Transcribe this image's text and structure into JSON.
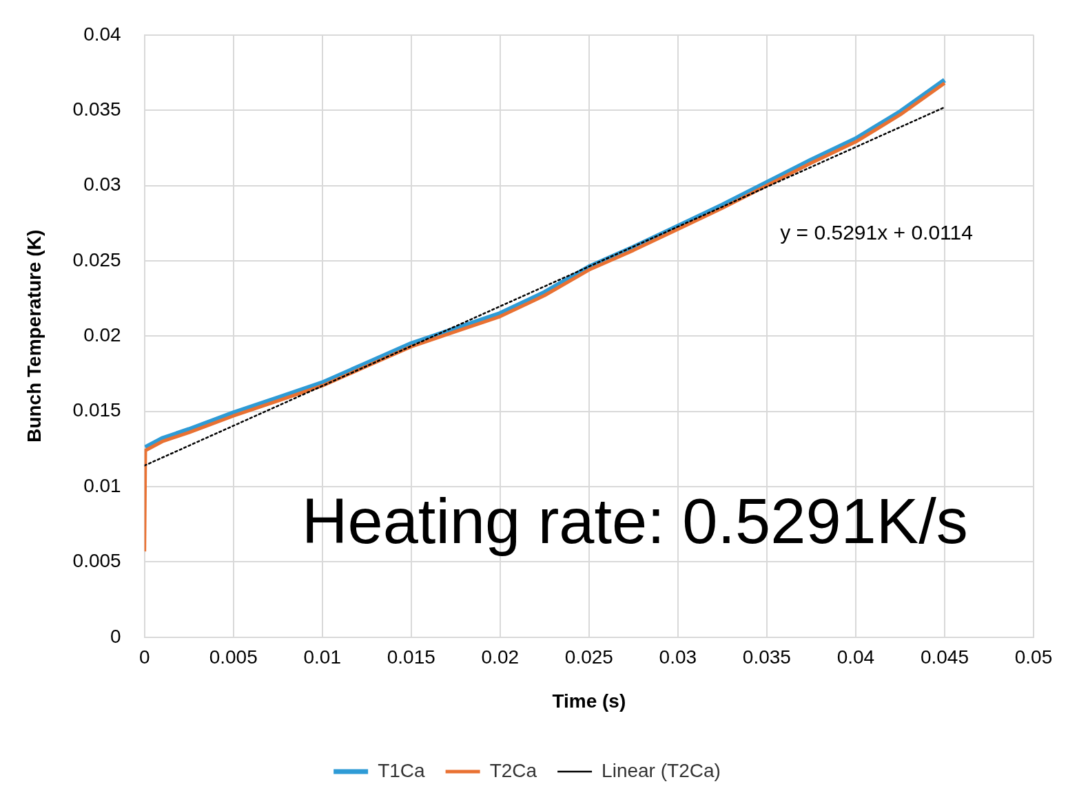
{
  "chart_data": {
    "type": "line",
    "xlabel": "Time (s)",
    "ylabel": "Bunch Temperature (K)",
    "xlim": [
      0,
      0.05
    ],
    "xticks": [
      0,
      0.005,
      0.01,
      0.015,
      0.02,
      0.025,
      0.03,
      0.035,
      0.04,
      0.045,
      0.05
    ],
    "ylim": [
      0,
      0.04
    ],
    "yticks": [
      0,
      0.005,
      0.01,
      0.015,
      0.02,
      0.025,
      0.03,
      0.035,
      0.04
    ],
    "grid": true,
    "legend": "bottom",
    "marker": "none",
    "series": [
      {
        "name": "T1Ca",
        "color": "#2e9bd6",
        "x": [
          5e-05,
          0.001,
          0.0025,
          0.005,
          0.0075,
          0.01,
          0.0125,
          0.015,
          0.0175,
          0.02,
          0.0225,
          0.025,
          0.0275,
          0.03,
          0.0325,
          0.035,
          0.0375,
          0.04,
          0.0425,
          0.045
        ],
        "values": [
          0.0126,
          0.0132,
          0.0138,
          0.0149,
          0.0159,
          0.0169,
          0.0182,
          0.0195,
          0.0205,
          0.0215,
          0.0229,
          0.0246,
          0.0259,
          0.0273,
          0.0287,
          0.0302,
          0.0317,
          0.0331,
          0.0349,
          0.037
        ]
      },
      {
        "name": "T2Ca",
        "color": "#e97132",
        "x": [
          0,
          5e-05,
          0.001,
          0.0025,
          0.005,
          0.0075,
          0.01,
          0.0125,
          0.015,
          0.0175,
          0.02,
          0.0225,
          0.025,
          0.0275,
          0.03,
          0.0325,
          0.035,
          0.0375,
          0.04,
          0.0425,
          0.045
        ],
        "values": [
          0.0057,
          0.0124,
          0.013,
          0.0136,
          0.0147,
          0.0157,
          0.0167,
          0.018,
          0.0193,
          0.0203,
          0.0213,
          0.0227,
          0.0244,
          0.0257,
          0.0271,
          0.0285,
          0.03,
          0.0315,
          0.0329,
          0.0347,
          0.0368
        ]
      },
      {
        "name": "Linear (T2Ca)",
        "type": "line",
        "color": "#000000",
        "line_style": "dotted",
        "x": [
          0,
          0.045
        ],
        "values": [
          0.0114,
          0.0352
        ]
      }
    ],
    "annotations": [
      "y = 0.5291x + 0.0114",
      "Heating rate: 0.5291K/s"
    ]
  }
}
